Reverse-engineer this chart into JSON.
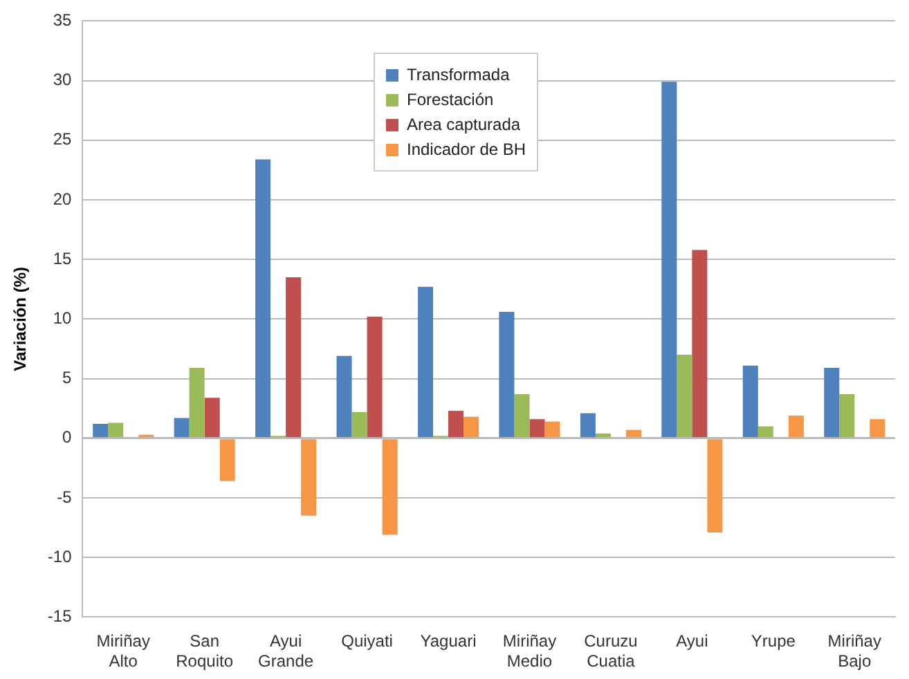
{
  "chart_data": {
    "type": "bar",
    "ylabel": "Variación (%)",
    "categories": [
      "Miriñay\nAlto",
      "San\nRoquito",
      "Ayui\nGrande",
      "Quiyati",
      "Yaguari",
      "Miriñay\nMedio",
      "Curuzu\nCuatia",
      "Ayui",
      "Yrupe",
      "Miriñay\nBajo"
    ],
    "series": [
      {
        "name": "Transformada",
        "color": "#4f81bd",
        "values": [
          1.2,
          1.7,
          23.4,
          6.9,
          12.7,
          10.6,
          2.1,
          29.9,
          6.1,
          5.9
        ]
      },
      {
        "name": "Forestación",
        "color": "#9bbb59",
        "values": [
          1.3,
          5.9,
          0.2,
          2.2,
          0.2,
          3.7,
          0.4,
          7.0,
          1.0,
          3.7
        ]
      },
      {
        "name": "Area capturada",
        "color": "#c0504d",
        "values": [
          0,
          3.4,
          13.5,
          10.2,
          2.3,
          1.6,
          0,
          15.8,
          0,
          0
        ]
      },
      {
        "name": "Indicador de BH",
        "color": "#f79646",
        "values": [
          0.3,
          -3.6,
          -6.5,
          -8.1,
          1.8,
          1.4,
          0.7,
          -7.9,
          1.9,
          1.6
        ]
      }
    ],
    "ylim": [
      -15,
      35
    ],
    "yticks": [
      -15,
      -10,
      -5,
      0,
      5,
      10,
      15,
      20,
      25,
      30,
      35
    ],
    "grid": "y",
    "legend": "top"
  }
}
